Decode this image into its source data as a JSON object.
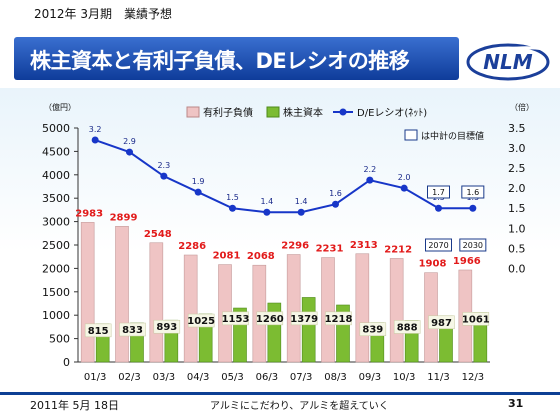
{
  "header": {
    "subtitle": "2012年 3月期　業績予想"
  },
  "title": "株主資本と有利子負債、DEレシオの推移",
  "logo_text": "NLM",
  "footer": {
    "date": "2011年 5月 18日",
    "slogan": "アルミにこだわり、アルミを超えていく",
    "page": "31"
  },
  "colors": {
    "debt": "#efc4c4",
    "equity": "#7cbc32",
    "de_ratio": "#1736c8",
    "debt_label": "#e21a1a",
    "banner": "#1f4fb4"
  },
  "chart_data": {
    "type": "bar",
    "categories": [
      "01/3",
      "02/3",
      "03/3",
      "04/3",
      "05/3",
      "06/3",
      "07/3",
      "08/3",
      "09/3",
      "10/3",
      "11/3",
      "12/3"
    ],
    "series": [
      {
        "name": "有利子負債",
        "type": "bar",
        "values": [
          2983,
          2899,
          2548,
          2286,
          2081,
          2068,
          2296,
          2231,
          2313,
          2212,
          1908,
          1966
        ]
      },
      {
        "name": "株主資本",
        "type": "bar",
        "values": [
          815,
          833,
          893,
          1025,
          1153,
          1260,
          1379,
          1218,
          839,
          888,
          987,
          1061
        ]
      },
      {
        "name": "D/Eレシオ(ﾈｯﾄ)",
        "type": "line",
        "axis": "right",
        "values": [
          3.2,
          2.9,
          2.3,
          1.9,
          1.5,
          1.4,
          1.4,
          1.6,
          2.2,
          2.0,
          1.5,
          1.5
        ]
      }
    ],
    "ylabel_left": "（億円）",
    "ylabel_right": "（倍）",
    "ylim_left": [
      0,
      5000
    ],
    "ylim_right": [
      0,
      3.5
    ],
    "yticks_left": [
      "0",
      "500",
      "1000",
      "1500",
      "2000",
      "2500",
      "3000",
      "3500",
      "4000",
      "4500",
      "5000"
    ],
    "yticks_right": [
      "0.0",
      "0.5",
      "1.0",
      "1.5",
      "2.0",
      "2.5",
      "3.0",
      "3.5"
    ],
    "grid": false,
    "legend_position": "top",
    "target_note": "は中計の目標値",
    "targets": [
      {
        "category": "11/3",
        "de_ratio": "1.7",
        "debt": "2070"
      },
      {
        "category": "12/3",
        "de_ratio": "1.6",
        "debt": "2030"
      }
    ]
  }
}
